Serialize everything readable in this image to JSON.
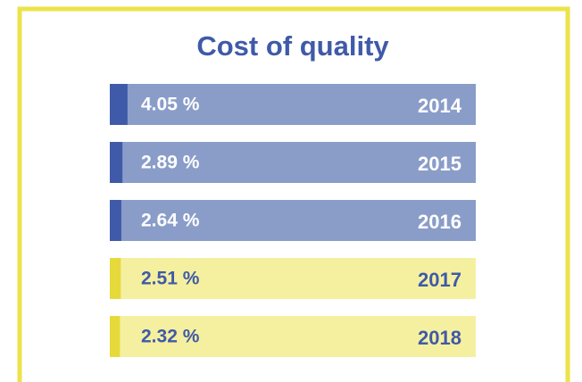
{
  "chart_data": {
    "type": "bar",
    "orientation": "horizontal",
    "title": "Cost of quality",
    "categories": [
      "2014",
      "2015",
      "2016",
      "2017",
      "2018"
    ],
    "values": [
      4.05,
      2.89,
      2.64,
      2.51,
      2.32
    ],
    "value_labels": [
      "4.05 %",
      "2.89 %",
      "2.64 %",
      "2.51 %",
      "2.32 %"
    ],
    "colors": [
      "#8a9dc9",
      "#8a9dc9",
      "#8a9dc9",
      "#f5f0a0",
      "#f5f0a0"
    ],
    "accent_colors": [
      "#3f5aa8",
      "#3f5aa8",
      "#3f5aa8",
      "#e6d93a",
      "#e6d93a"
    ],
    "text_colors": [
      "#ffffff",
      "#ffffff",
      "#ffffff",
      "#3f5aa8",
      "#3f5aa8"
    ]
  }
}
